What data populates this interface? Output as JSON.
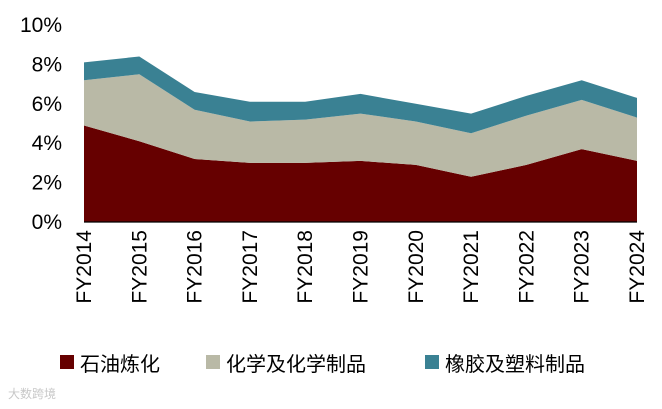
{
  "chart_data": {
    "type": "area",
    "stacked": true,
    "x": [
      "FY2014",
      "FY2015",
      "FY2016",
      "FY2017",
      "FY2018",
      "FY2019",
      "FY2020",
      "FY2021",
      "FY2022",
      "FY2023",
      "FY2024"
    ],
    "series": [
      {
        "name": "石油炼化",
        "color": "#660000",
        "values": [
          4.9,
          4.1,
          3.2,
          3.0,
          3.0,
          3.1,
          2.9,
          2.3,
          2.9,
          3.7,
          3.1
        ]
      },
      {
        "name": "化学及化学制品",
        "color": "#b9b9a6",
        "values": [
          2.3,
          3.4,
          2.5,
          2.1,
          2.2,
          2.4,
          2.2,
          2.2,
          2.5,
          2.5,
          2.2
        ]
      },
      {
        "name": "橡胶及塑料制品",
        "color": "#3a8193",
        "values": [
          0.9,
          0.9,
          0.9,
          1.0,
          0.9,
          1.0,
          0.9,
          1.0,
          1.0,
          1.0,
          1.0
        ]
      }
    ],
    "yticks": [
      "0%",
      "2%",
      "4%",
      "6%",
      "8%",
      "10%"
    ],
    "ylim": [
      0,
      10
    ],
    "legend": "bottom",
    "grid": false
  },
  "watermark": "大数跨境"
}
